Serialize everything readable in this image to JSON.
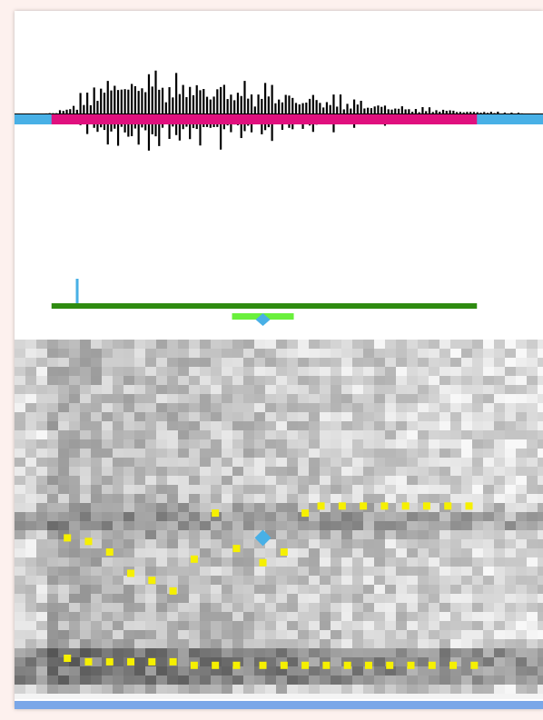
{
  "colors": {
    "background": "#fdf1ee",
    "panel": "#ffffff",
    "waveform": "#000000",
    "timeline_base": "#48b0e6",
    "selection_bar": "#e0107e",
    "pitch_track": "#2e8b10",
    "pitch_handle": "#6af03c",
    "marker": "#48b0e6",
    "formant_point": "#f6f000",
    "bottom_bar": "#7aa7e8"
  },
  "icons": {
    "cursor_marker": "vertical-tick",
    "center_handle": "diamond-marker"
  },
  "waveform": {
    "amplitudes": [
      2,
      6,
      10,
      24,
      30,
      42,
      40,
      48,
      38,
      52,
      30,
      46,
      34,
      40,
      28,
      44,
      26,
      38,
      22,
      36,
      20,
      30,
      18,
      26,
      14,
      22,
      12,
      18,
      10,
      14,
      8,
      10,
      6,
      8,
      5,
      6,
      4,
      4,
      3,
      3,
      2,
      2
    ],
    "selection": {
      "start_fraction": 0.07,
      "end_fraction": 0.875
    }
  },
  "pitch": {
    "track": {
      "start_fraction": 0.07,
      "end_fraction": 0.875
    },
    "cursor_fraction": 0.116,
    "handle_fraction": 0.47
  },
  "spectrogram": {
    "formant_1": [
      [
        0.1,
        0.56
      ],
      [
        0.14,
        0.57
      ],
      [
        0.18,
        0.6
      ],
      [
        0.22,
        0.66
      ],
      [
        0.26,
        0.68
      ],
      [
        0.3,
        0.71
      ],
      [
        0.34,
        0.62
      ],
      [
        0.38,
        0.49
      ],
      [
        0.42,
        0.59
      ],
      [
        0.47,
        0.63
      ],
      [
        0.51,
        0.6
      ],
      [
        0.55,
        0.49
      ],
      [
        0.58,
        0.47
      ],
      [
        0.62,
        0.47
      ],
      [
        0.66,
        0.47
      ],
      [
        0.7,
        0.47
      ],
      [
        0.74,
        0.47
      ],
      [
        0.78,
        0.47
      ],
      [
        0.82,
        0.47
      ],
      [
        0.86,
        0.47
      ]
    ],
    "formant_2": [
      [
        0.1,
        0.9
      ],
      [
        0.14,
        0.91
      ],
      [
        0.18,
        0.91
      ],
      [
        0.22,
        0.91
      ],
      [
        0.26,
        0.91
      ],
      [
        0.3,
        0.91
      ],
      [
        0.34,
        0.92
      ],
      [
        0.38,
        0.92
      ],
      [
        0.42,
        0.92
      ],
      [
        0.47,
        0.92
      ],
      [
        0.51,
        0.92
      ],
      [
        0.55,
        0.92
      ],
      [
        0.59,
        0.92
      ],
      [
        0.63,
        0.92
      ],
      [
        0.67,
        0.92
      ],
      [
        0.71,
        0.92
      ],
      [
        0.75,
        0.92
      ],
      [
        0.79,
        0.92
      ],
      [
        0.83,
        0.92
      ],
      [
        0.87,
        0.92
      ]
    ],
    "selected_point": [
      0.47,
      0.56
    ]
  }
}
